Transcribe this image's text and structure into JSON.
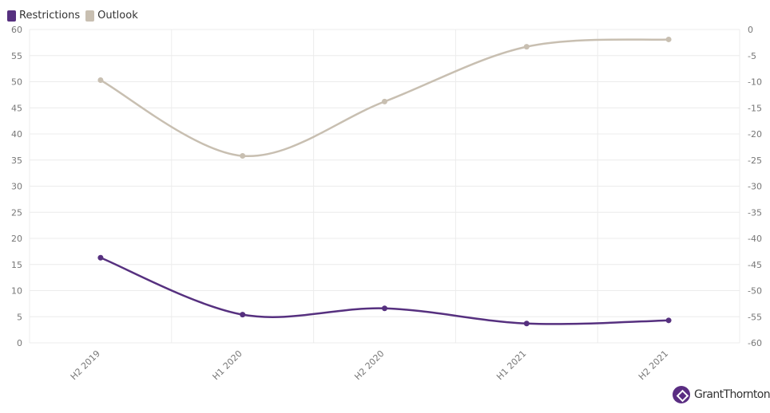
{
  "chart_data": {
    "type": "line",
    "categories": [
      "H2 2019",
      "H1 2020",
      "H2 2020",
      "H1 2021",
      "H2 2021"
    ],
    "series": [
      {
        "name": "Restrictions",
        "axis": "left",
        "color": "#56307f",
        "values": [
          16.3,
          5.4,
          6.6,
          3.7,
          4.3
        ]
      },
      {
        "name": "Outlook",
        "axis": "right",
        "color": "#c8bfb1",
        "values": [
          -9.7,
          -24.2,
          -13.8,
          -3.3,
          -1.9
        ]
      }
    ],
    "y_left": {
      "min": 0,
      "max": 60,
      "step": 5
    },
    "y_right": {
      "min": -60,
      "max": 0,
      "step": 5
    },
    "grid": true,
    "legend_position": "top-left",
    "smooth": true
  },
  "branding": {
    "logo_text": "GrantThornton"
  }
}
